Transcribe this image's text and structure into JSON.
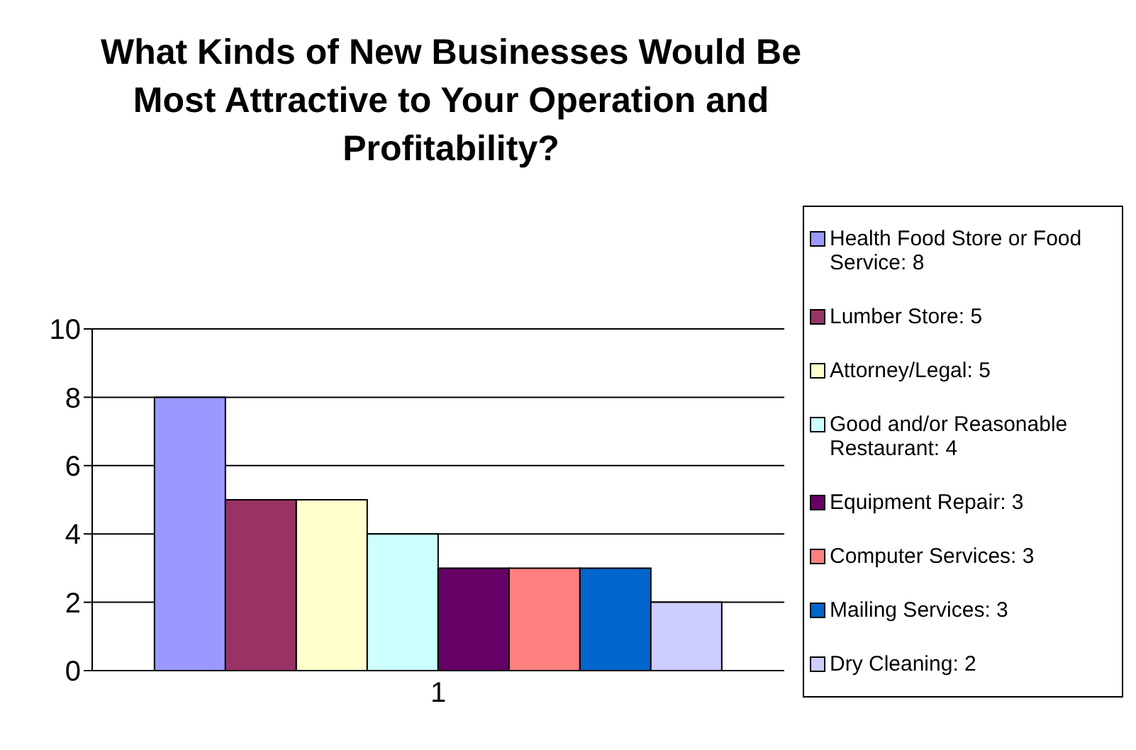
{
  "chart_data": {
    "type": "bar",
    "title": "What Kinds of New Businesses Would Be Most Attractive to Your Operation and Profitability?",
    "categories": [
      "1"
    ],
    "series": [
      {
        "name": "Health Food Store or Food Service: 8",
        "color": "#9999ff",
        "values": [
          8
        ]
      },
      {
        "name": "Lumber Store:  5",
        "color": "#993366",
        "values": [
          5
        ]
      },
      {
        "name": "Attorney/Legal:  5",
        "color": "#ffffcc",
        "values": [
          5
        ]
      },
      {
        "name": "Good and/or Reasonable Restaurant:  4",
        "color": "#ccffff",
        "values": [
          4
        ]
      },
      {
        "name": "Equipment Repair:  3",
        "color": "#660066",
        "values": [
          3
        ]
      },
      {
        "name": "Computer Services:  3",
        "color": "#ff8080",
        "values": [
          3
        ]
      },
      {
        "name": "Mailing Services:  3",
        "color": "#0066cc",
        "values": [
          3
        ]
      },
      {
        "name": "Dry Cleaning:  2",
        "color": "#ccccff",
        "values": [
          2
        ]
      }
    ],
    "ylim": [
      0,
      10
    ],
    "yticks": [
      0,
      2,
      4,
      6,
      8,
      10
    ],
    "grid": "y",
    "legend": "right"
  }
}
